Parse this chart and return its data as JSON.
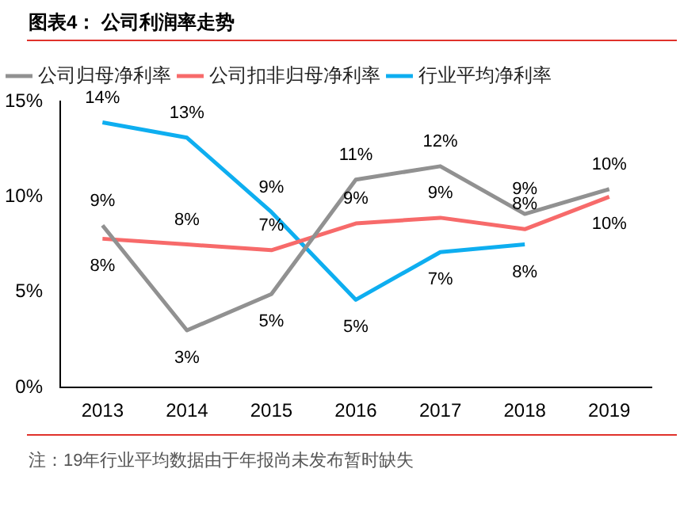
{
  "chart_data": {
    "type": "line",
    "title": "图表4：  公司利润率走势",
    "categories": [
      "2013",
      "2014",
      "2015",
      "2016",
      "2017",
      "2018",
      "2019"
    ],
    "series": [
      {
        "name": "公司归母净利率",
        "color": "#919191",
        "values": [
          8.5,
          3.0,
          4.9,
          10.9,
          11.6,
          9.1,
          10.4
        ],
        "value_labels": [
          "9%",
          "3%",
          "5%",
          "11%",
          "12%",
          "9%",
          "10%"
        ]
      },
      {
        "name": "公司扣非归母净利率",
        "color": "#f76a6a",
        "values": [
          7.8,
          7.5,
          7.2,
          8.6,
          8.9,
          8.3,
          10.0
        ],
        "value_labels": [
          "8%",
          "8%",
          "7%",
          "9%",
          "9%",
          "8%",
          "10%"
        ]
      },
      {
        "name": "行业平均净利率",
        "color": "#0eaef0",
        "values": [
          13.9,
          13.1,
          9.2,
          4.6,
          7.1,
          7.5,
          null
        ],
        "value_labels": [
          "14%",
          "13%",
          "9%",
          "5%",
          "7%",
          "8%",
          null
        ]
      }
    ],
    "ylim": [
      0,
      15
    ],
    "yticks": [
      {
        "value": 0,
        "label": "0%"
      },
      {
        "value": 5,
        "label": "5%"
      },
      {
        "value": 10,
        "label": "10%"
      },
      {
        "value": 15,
        "label": "15%"
      }
    ],
    "grid": false,
    "legend": "top",
    "marker": "none",
    "line_style": "solid",
    "annotations": [
      "注：19年行业平均数据由于年报尚未发布暂时缺失"
    ]
  }
}
